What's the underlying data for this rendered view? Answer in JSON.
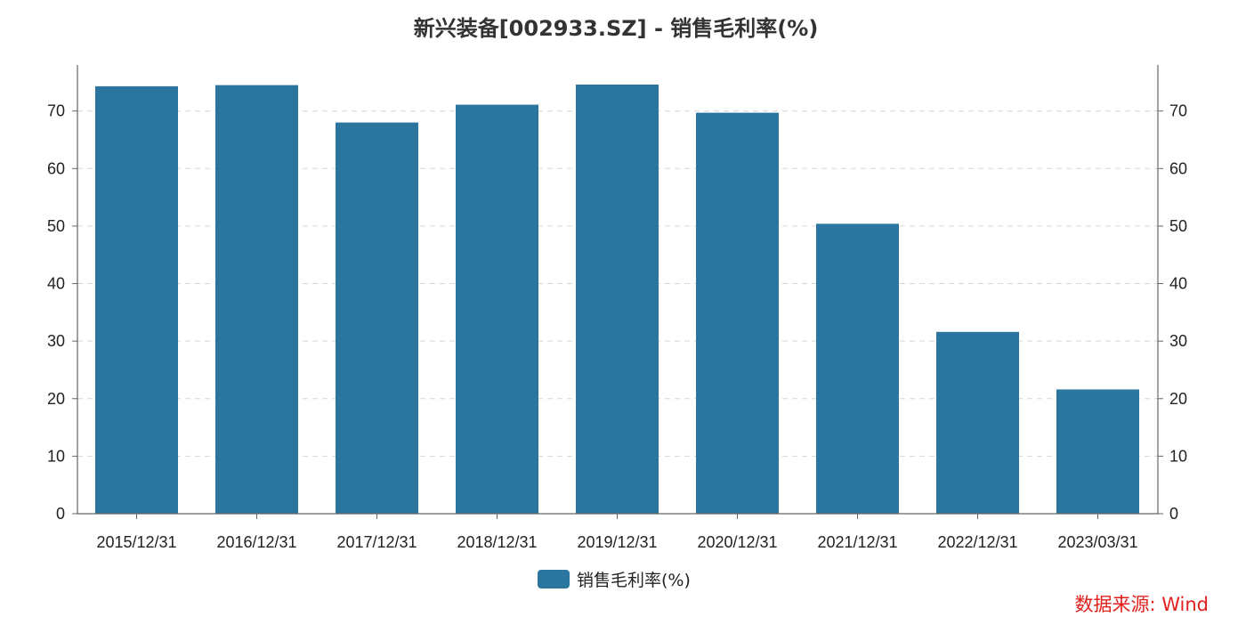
{
  "chart_data": {
    "type": "bar",
    "title": "新兴装备[002933.SZ] - 销售毛利率(%)",
    "categories": [
      "2015/12/31",
      "2016/12/31",
      "2017/12/31",
      "2018/12/31",
      "2019/12/31",
      "2020/12/31",
      "2021/12/31",
      "2022/12/31",
      "2023/03/31"
    ],
    "series": [
      {
        "name": "销售毛利率(%)",
        "values": [
          74.3,
          74.5,
          68.0,
          71.1,
          74.6,
          69.7,
          50.4,
          31.6,
          21.6
        ],
        "color": "#2a769e"
      }
    ],
    "ylim": [
      0,
      78
    ],
    "yticks": [
      0,
      10,
      20,
      30,
      40,
      50,
      60,
      70
    ],
    "secondary_axis": true,
    "grid": "horizontal dashed",
    "legend_position": "bottom-center",
    "source": "数据来源: Wind"
  },
  "colors": {
    "bar": "#2a769e",
    "source_text": "#e0211d",
    "grid": "#d6d6d6",
    "axis": "#666666"
  }
}
